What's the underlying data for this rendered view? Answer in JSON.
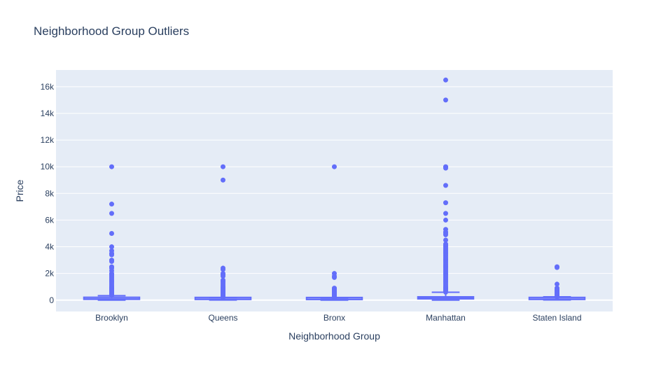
{
  "chart_data": {
    "type": "box",
    "title": "Neighborhood Group Outliers",
    "xlabel": "Neighborhood Group",
    "ylabel": "Price",
    "ylim": [
      -850,
      17250
    ],
    "yticks": [
      0,
      2000,
      4000,
      6000,
      8000,
      10000,
      12000,
      14000,
      16000
    ],
    "ytick_labels": [
      "0",
      "2k",
      "4k",
      "6k",
      "8k",
      "10k",
      "12k",
      "14k",
      "16k"
    ],
    "grid": true,
    "colors": {
      "box": "#636efa",
      "plot_bg": "#e5ecf6",
      "grid": "#ffffff",
      "text": "#2a3f5f"
    },
    "categories": [
      "Brooklyn",
      "Queens",
      "Bronx",
      "Manhattan",
      "Staten Island"
    ],
    "boxes": [
      {
        "category": "Brooklyn",
        "min": 0,
        "q1": 60,
        "median": 90,
        "q3": 150,
        "upper_fence": 335,
        "outliers": [
          10000,
          7200,
          6500,
          5000,
          4000,
          3700,
          3500,
          3400,
          3000,
          2900,
          2500,
          2400,
          2200,
          2000,
          1900,
          1800,
          1700,
          1600,
          1500,
          1400,
          1300,
          1200,
          1100,
          1000,
          950,
          900,
          850,
          800,
          750,
          700,
          650,
          600,
          550,
          500,
          450,
          400,
          350
        ]
      },
      {
        "category": "Queens",
        "min": 10,
        "q1": 50,
        "median": 75,
        "q3": 110,
        "upper_fence": 200,
        "outliers": [
          10000,
          9000,
          2400,
          2300,
          2000,
          1900,
          1800,
          1500,
          1400,
          1300,
          1200,
          1100,
          1000,
          950,
          900,
          850,
          800,
          750,
          700,
          650,
          600,
          550,
          500,
          450,
          400,
          350,
          300,
          250,
          210
        ]
      },
      {
        "category": "Bronx",
        "min": 0,
        "q1": 45,
        "median": 65,
        "q3": 100,
        "upper_fence": 180,
        "outliers": [
          10000,
          2000,
          1800,
          1700,
          900,
          850,
          800,
          750,
          700,
          650,
          600,
          550,
          500,
          450,
          400,
          350,
          300,
          250,
          200,
          190
        ]
      },
      {
        "category": "Manhattan",
        "min": 0,
        "q1": 95,
        "median": 150,
        "q3": 220,
        "upper_fence": 590,
        "outliers": [
          16500,
          15000,
          10000,
          9990,
          9900,
          8600,
          7300,
          6500,
          6000,
          5300,
          5100,
          5000,
          4900,
          4500,
          4200,
          4100,
          4000,
          3900,
          3800,
          3700,
          3600,
          3500,
          3400,
          3300,
          3200,
          3100,
          3000,
          2900,
          2800,
          2700,
          2600,
          2500,
          2400,
          2300,
          2200,
          2100,
          2000,
          1900,
          1800,
          1700,
          1600,
          1500,
          1400,
          1300,
          1200,
          1100,
          1000,
          950,
          900,
          850,
          800,
          750,
          700,
          650,
          600
        ]
      },
      {
        "category": "Staten Island",
        "min": 13,
        "q1": 50,
        "median": 75,
        "q3": 110,
        "upper_fence": 250,
        "outliers": [
          2500,
          2450,
          1200,
          900,
          800,
          750,
          700,
          650,
          600,
          550,
          500,
          450,
          400,
          350,
          300,
          260
        ]
      }
    ]
  }
}
